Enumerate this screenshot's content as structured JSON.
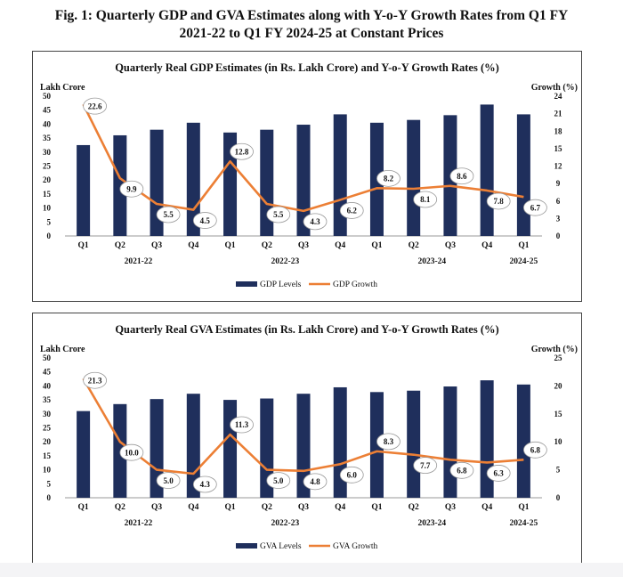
{
  "figure": {
    "title_line1": "Fig. 1: Quarterly GDP and GVA Estimates along with Y-o-Y Growth Rates from Q1 FY",
    "title_line2": "2021-22 to Q1 FY 2024-25 at Constant Prices"
  },
  "colors": {
    "bar": "#1f2f5c",
    "line": "#ec7f35",
    "axis": "#999999"
  },
  "chart_data": [
    {
      "type": "bar+line",
      "title": "Quarterly Real GDP Estimates (in Rs. Lakh Crore) and Y-o-Y Growth Rates (%)",
      "ylabel_left": "Lakh Crore",
      "ylabel_right": "Growth (%)",
      "ylim_left": [
        0,
        50
      ],
      "yticks_left": [
        0,
        5,
        10,
        15,
        20,
        25,
        30,
        35,
        40,
        45,
        50
      ],
      "ylim_right": [
        0,
        24
      ],
      "yticks_right": [
        0,
        3,
        6,
        9,
        12,
        15,
        18,
        21,
        24
      ],
      "categories": [
        "Q1",
        "Q2",
        "Q3",
        "Q4",
        "Q1",
        "Q2",
        "Q3",
        "Q4",
        "Q1",
        "Q2",
        "Q3",
        "Q4",
        "Q1"
      ],
      "years": [
        {
          "label": "2021-22",
          "start": 0,
          "end": 3
        },
        {
          "label": "2022-23",
          "start": 4,
          "end": 7
        },
        {
          "label": "2023-24",
          "start": 8,
          "end": 11
        },
        {
          "label": "2024-25",
          "start": 12,
          "end": 12
        }
      ],
      "series": [
        {
          "name": "GDP Levels",
          "kind": "bar",
          "axis": "left",
          "values": [
            32.5,
            36.0,
            38.0,
            40.5,
            37.0,
            38.0,
            39.8,
            43.5,
            40.5,
            41.5,
            43.2,
            47.0,
            43.5
          ]
        },
        {
          "name": "GDP Growth",
          "kind": "line",
          "axis": "right",
          "values": [
            22.6,
            9.9,
            5.5,
            4.5,
            12.8,
            5.5,
            4.3,
            6.2,
            8.2,
            8.1,
            8.6,
            7.8,
            6.7
          ],
          "labels": [
            "22.6",
            "9.9",
            "5.5",
            "4.5",
            "12.8",
            "5.5",
            "4.3",
            "6.2",
            "8.2",
            "8.1",
            "8.6",
            "7.8",
            "6.7"
          ]
        }
      ],
      "legend": [
        "GDP Levels",
        "GDP Growth"
      ]
    },
    {
      "type": "bar+line",
      "title": "Quarterly Real GVA Estimates (in Rs. Lakh Crore) and Y-o-Y Growth Rates (%)",
      "ylabel_left": "Lakh Crore",
      "ylabel_right": "Growth (%)",
      "ylim_left": [
        0,
        50
      ],
      "yticks_left": [
        0,
        5,
        10,
        15,
        20,
        25,
        30,
        35,
        40,
        45,
        50
      ],
      "ylim_right": [
        0,
        25
      ],
      "yticks_right": [
        0,
        5,
        10,
        15,
        20,
        25
      ],
      "categories": [
        "Q1",
        "Q2",
        "Q3",
        "Q4",
        "Q1",
        "Q2",
        "Q3",
        "Q4",
        "Q1",
        "Q2",
        "Q3",
        "Q4",
        "Q1"
      ],
      "years": [
        {
          "label": "2021-22",
          "start": 0,
          "end": 3
        },
        {
          "label": "2022-23",
          "start": 4,
          "end": 7
        },
        {
          "label": "2023-24",
          "start": 8,
          "end": 11
        },
        {
          "label": "2024-25",
          "start": 12,
          "end": 12
        }
      ],
      "series": [
        {
          "name": "GVA Levels",
          "kind": "bar",
          "axis": "left",
          "values": [
            31.0,
            33.5,
            35.3,
            37.2,
            35.0,
            35.5,
            37.2,
            39.5,
            37.8,
            38.3,
            39.8,
            42.0,
            40.5
          ]
        },
        {
          "name": "GVA Growth",
          "kind": "line",
          "axis": "right",
          "values": [
            21.3,
            10.0,
            5.0,
            4.3,
            11.3,
            5.0,
            4.8,
            6.0,
            8.3,
            7.7,
            6.8,
            6.3,
            6.8
          ],
          "labels": [
            "21.3",
            "10.0",
            "5.0",
            "4.3",
            "11.3",
            "5.0",
            "4.8",
            "6.0",
            "8.3",
            "7.7",
            "6.8",
            "6.3",
            "6.8"
          ]
        }
      ],
      "legend": [
        "GVA Levels",
        "GVA Growth"
      ]
    }
  ]
}
